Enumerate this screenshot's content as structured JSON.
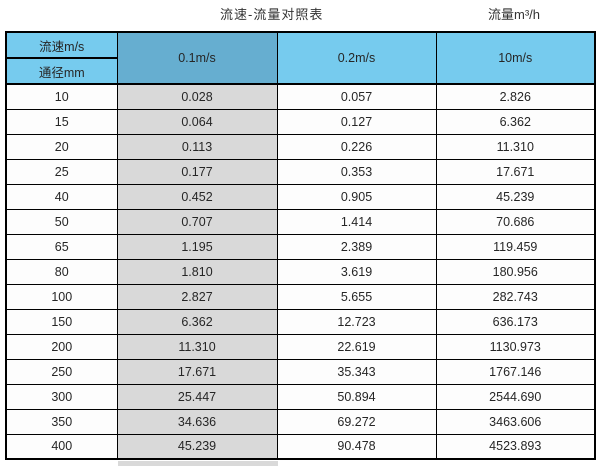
{
  "titles": {
    "main": "流速-流量对照表",
    "unit": "流量m³/h"
  },
  "table": {
    "corner_top": "流速m/s",
    "corner_bottom": "通径mm",
    "velocity_columns": [
      "0.1m/s",
      "0.2m/s",
      "10m/s"
    ],
    "rows": [
      {
        "diameter": "10",
        "values": [
          "0.028",
          "0.057",
          "2.826"
        ]
      },
      {
        "diameter": "15",
        "values": [
          "0.064",
          "0.127",
          "6.362"
        ]
      },
      {
        "diameter": "20",
        "values": [
          "0.113",
          "0.226",
          "11.310"
        ]
      },
      {
        "diameter": "25",
        "values": [
          "0.177",
          "0.353",
          "17.671"
        ]
      },
      {
        "diameter": "40",
        "values": [
          "0.452",
          "0.905",
          "45.239"
        ]
      },
      {
        "diameter": "50",
        "values": [
          "0.707",
          "1.414",
          "70.686"
        ]
      },
      {
        "diameter": "65",
        "values": [
          "1.195",
          "2.389",
          "119.459"
        ]
      },
      {
        "diameter": "80",
        "values": [
          "1.810",
          "3.619",
          "180.956"
        ]
      },
      {
        "diameter": "100",
        "values": [
          "2.827",
          "5.655",
          "282.743"
        ]
      },
      {
        "diameter": "150",
        "values": [
          "6.362",
          "12.723",
          "636.173"
        ]
      },
      {
        "diameter": "200",
        "values": [
          "11.310",
          "22.619",
          "1130.973"
        ]
      },
      {
        "diameter": "250",
        "values": [
          "17.671",
          "35.343",
          "1767.146"
        ]
      },
      {
        "diameter": "300",
        "values": [
          "25.447",
          "50.894",
          "2544.690"
        ]
      },
      {
        "diameter": "350",
        "values": [
          "34.636",
          "69.272",
          "3463.606"
        ]
      },
      {
        "diameter": "400",
        "values": [
          "45.239",
          "90.478",
          "4523.893"
        ]
      }
    ],
    "colors": {
      "header_blue": "#76cbee",
      "header_dark_blue": "#66aed0",
      "highlight_gray": "#d9d9d9",
      "border": "#000000"
    }
  }
}
